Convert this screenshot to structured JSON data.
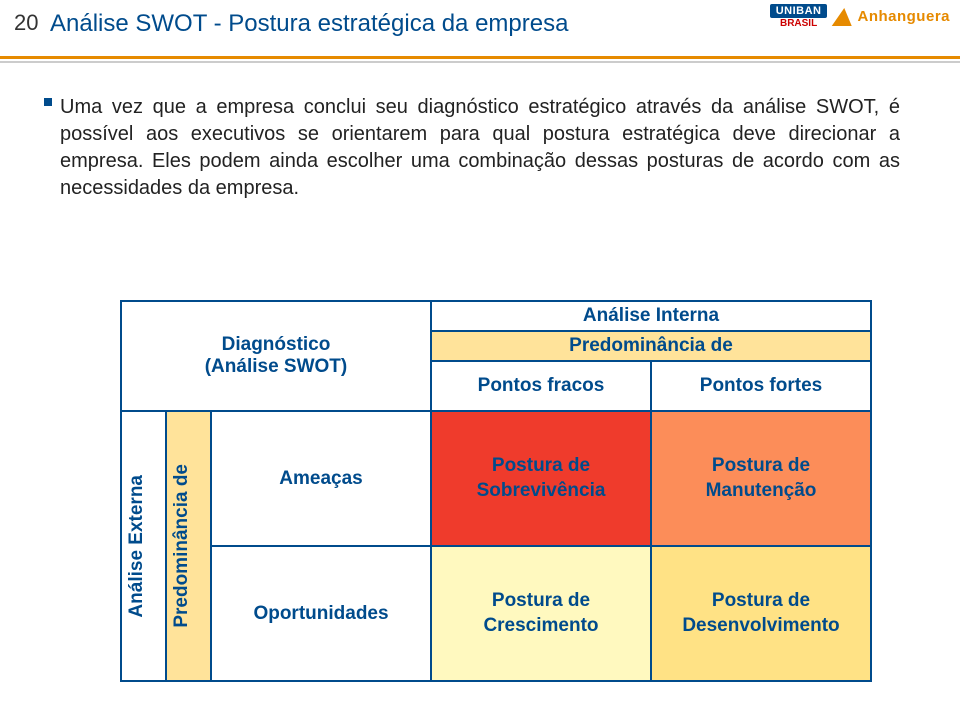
{
  "slide_number": "20",
  "title": "Análise SWOT - Postura estratégica da empresa",
  "logos": {
    "uniban": "UNIBAN",
    "uniban_sub": "BRASIL",
    "anh": "Anhanguera"
  },
  "paragraph": "Uma vez que a empresa conclui seu diagnóstico estratégico através da análise SWOT, é possível aos executivos se orientarem para qual postura estratégica deve direcionar a empresa. Eles podem ainda escolher uma combinação dessas posturas de acordo com as necessidades da empresa.",
  "matrix": {
    "corner_line1": "Diagnóstico",
    "corner_line2": "(Análise SWOT)",
    "top_header": "Análise Interna",
    "top_subheader": "Predominância de",
    "col_weak": "Pontos fracos",
    "col_strong": "Pontos fortes",
    "left_header": "Análise Externa",
    "left_subheader": "Predominância de",
    "row_threats": "Ameaças",
    "row_opps": "Oportunidades",
    "cell_sobrev_l1": "Postura de",
    "cell_sobrev_l2": "Sobrevivência",
    "cell_manut_l1": "Postura de",
    "cell_manut_l2": "Manutenção",
    "cell_cresc_l1": "Postura de",
    "cell_cresc_l2": "Crescimento",
    "cell_desenv_l1": "Postura de",
    "cell_desenv_l2": "Desenvolvimento"
  },
  "colors": {
    "brand_blue": "#004b8c",
    "accent_orange": "#e68a00",
    "header_yellow": "#ffe39a",
    "cell_red": "#ef3b2c",
    "cell_orange": "#fc8d59",
    "cell_lightyellow": "#fff9bf",
    "cell_yellow": "#ffe285"
  }
}
